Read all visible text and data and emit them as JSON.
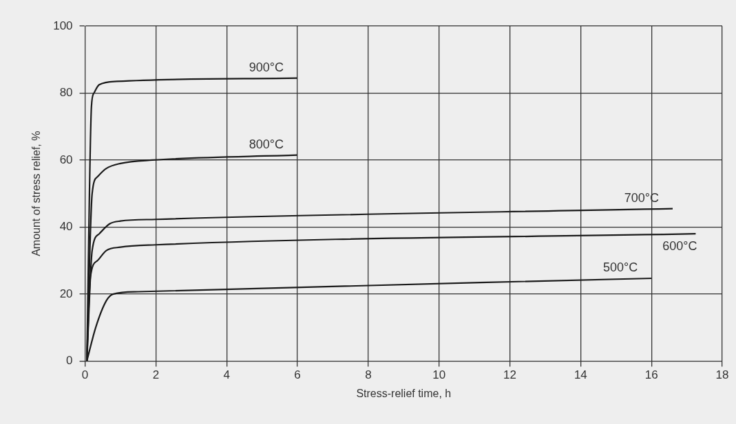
{
  "chart_data": {
    "type": "line",
    "xlabel": "Stress-relief time, h",
    "ylabel": "Amount of stress relief, %",
    "xlim": [
      0,
      18
    ],
    "xticks": [
      0,
      2,
      4,
      6,
      8,
      10,
      12,
      14,
      16,
      18
    ],
    "ylim": [
      0,
      100
    ],
    "yticks": [
      0,
      20,
      40,
      60,
      80,
      100
    ],
    "grid": true,
    "legend": false,
    "marker": "none",
    "line_style": "solid",
    "series": [
      {
        "name": "900°C",
        "color": "#1a1a1a",
        "x": [
          0.05,
          0.18,
          0.25,
          0.4,
          0.9,
          6
        ],
        "values": [
          0,
          76,
          80,
          82.5,
          83.5,
          84.5
        ]
      },
      {
        "name": "800°C",
        "color": "#1a1a1a",
        "x": [
          0.05,
          0.2,
          0.35,
          0.6,
          1,
          1.9,
          6
        ],
        "values": [
          0,
          50,
          55,
          57.5,
          59,
          60,
          61.5
        ]
      },
      {
        "name": "700°C",
        "color": "#1a1a1a",
        "x": [
          0.05,
          0.2,
          0.4,
          0.7,
          1,
          2,
          16.6
        ],
        "values": [
          0,
          33,
          38,
          41,
          41.8,
          42.3,
          45.5
        ]
      },
      {
        "name": "600°C",
        "color": "#1a1a1a",
        "x": [
          0.05,
          0.15,
          0.35,
          0.6,
          1,
          2,
          17.25
        ],
        "values": [
          0,
          25,
          30,
          33,
          34,
          34.7,
          38
        ]
      },
      {
        "name": "500°C",
        "color": "#1a1a1a",
        "x": [
          0.05,
          0.3,
          0.6,
          0.8,
          1.5,
          16
        ],
        "values": [
          0,
          10,
          18,
          20,
          20.7,
          24.7
        ]
      }
    ]
  }
}
